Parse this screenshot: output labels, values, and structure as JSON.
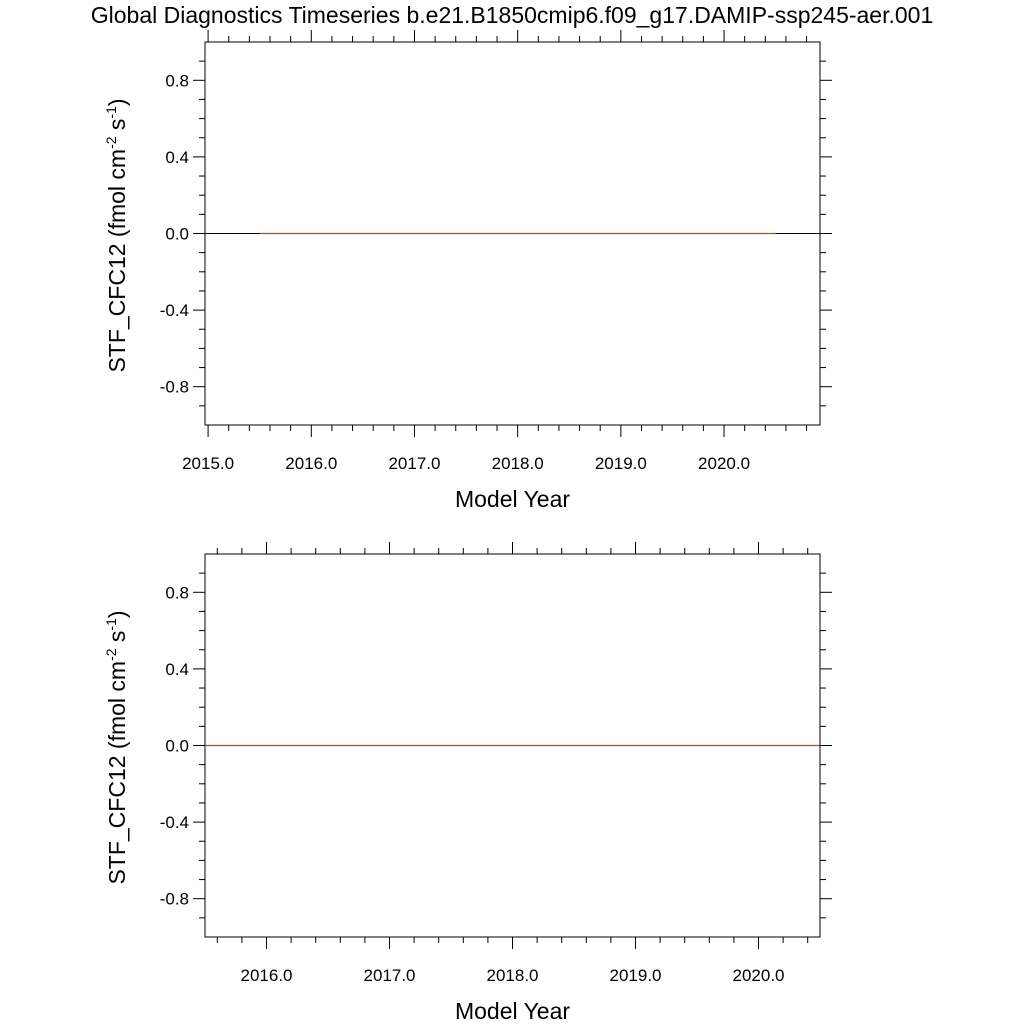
{
  "title": "Global Diagnostics Timeseries b.e21.B1850cmip6.f09_g17.DAMIP-ssp245-aer.001",
  "colors": {
    "series": "#a0522d",
    "axis": "#000000",
    "zero_line": "#000000"
  },
  "chart_data": [
    {
      "type": "line",
      "xlabel": "Model Year",
      "ylabel": "STF_CFC12 (fmol cm-2 s-1)",
      "ylabel_parts": {
        "main": "STF_CFC12 (fmol cm",
        "exp1": "-2",
        "mid": " s",
        "exp2": "-1",
        "close": ")"
      },
      "xlim": [
        2014.97,
        2020.93
      ],
      "ylim": [
        -1.0,
        1.0
      ],
      "x_ticks": [
        2015.0,
        2016.0,
        2017.0,
        2018.0,
        2019.0,
        2020.0
      ],
      "x_tick_labels": [
        "2015.0",
        "2016.0",
        "2017.0",
        "2018.0",
        "2019.0",
        "2020.0"
      ],
      "y_ticks": [
        0.8,
        0.4,
        0.0,
        -0.4,
        -0.8
      ],
      "y_tick_labels": [
        "0.8",
        "0.4",
        "0.0",
        "-0.4",
        "-0.8"
      ],
      "zero_line": true,
      "grid": false,
      "series": [
        {
          "x": [
            2015.5,
            2020.5
          ],
          "y": [
            0.0,
            0.0
          ]
        }
      ]
    },
    {
      "type": "line",
      "xlabel": "Model Year",
      "ylabel": "STF_CFC12 (fmol cm-2 s-1)",
      "ylabel_parts": {
        "main": "STF_CFC12 (fmol cm",
        "exp1": "-2",
        "mid": " s",
        "exp2": "-1",
        "close": ")"
      },
      "xlim": [
        2015.5,
        2020.5
      ],
      "ylim": [
        -1.0,
        1.0
      ],
      "x_ticks": [
        2016.0,
        2017.0,
        2018.0,
        2019.0,
        2020.0
      ],
      "x_tick_labels": [
        "2016.0",
        "2017.0",
        "2018.0",
        "2019.0",
        "2020.0"
      ],
      "y_ticks": [
        0.8,
        0.4,
        0.0,
        -0.4,
        -0.8
      ],
      "y_tick_labels": [
        "0.8",
        "0.4",
        "0.0",
        "-0.4",
        "-0.8"
      ],
      "zero_line": true,
      "grid": false,
      "series": [
        {
          "x": [
            2015.5,
            2020.5
          ],
          "y": [
            0.0,
            0.0
          ]
        }
      ]
    }
  ]
}
